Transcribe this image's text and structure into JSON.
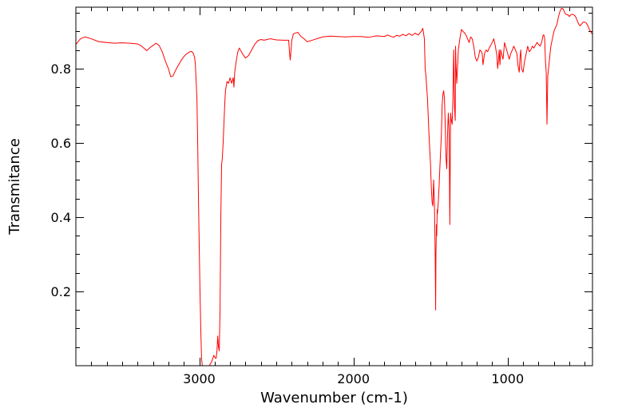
{
  "chart_data": {
    "type": "line",
    "title": "",
    "xlabel": "Wavenumber (cm-1)",
    "ylabel": "Transmitance",
    "xlim": [
      3800,
      450
    ],
    "ylim": [
      0.0,
      0.965
    ],
    "x_reversed": true,
    "grid": false,
    "legend": "none",
    "line_color": "#ff0000",
    "x_ticks": [
      {
        "value": 3000,
        "label": "3000"
      },
      {
        "value": 2000,
        "label": "2000"
      },
      {
        "value": 1000,
        "label": "1000"
      }
    ],
    "y_ticks": [
      {
        "value": 0.2,
        "label": "0.2"
      },
      {
        "value": 0.4,
        "label": "0.4"
      },
      {
        "value": 0.6,
        "label": "0.6"
      },
      {
        "value": 0.8,
        "label": "0.8"
      }
    ],
    "series": [
      {
        "x": [
          3800,
          3770,
          3740,
          3700,
          3650,
          3600,
          3550,
          3500,
          3450,
          3400,
          3380,
          3360,
          3340,
          3320,
          3300,
          3280,
          3260,
          3240,
          3220,
          3200,
          3185,
          3170,
          3150,
          3120,
          3100,
          3080,
          3060,
          3050,
          3040,
          3030,
          3025,
          3015,
          3010,
          3005,
          3000,
          2995,
          2990,
          2985,
          2980,
          2970,
          2960,
          2950,
          2935,
          2920,
          2905,
          2895,
          2890,
          2885,
          2880,
          2875,
          2870,
          2865,
          2860,
          2855,
          2850,
          2845,
          2840,
          2835,
          2830,
          2820,
          2810,
          2800,
          2790,
          2780,
          2775,
          2770,
          2760,
          2750,
          2740,
          2720,
          2700,
          2680,
          2660,
          2640,
          2620,
          2600,
          2580,
          2560,
          2540,
          2500,
          2450,
          2420,
          2415,
          2410,
          2400,
          2390,
          2380,
          2360,
          2340,
          2320,
          2300,
          2260,
          2200,
          2150,
          2100,
          2050,
          2000,
          1950,
          1900,
          1850,
          1800,
          1780,
          1760,
          1740,
          1720,
          1700,
          1680,
          1660,
          1640,
          1620,
          1600,
          1580,
          1560,
          1550,
          1540,
          1535,
          1530,
          1520,
          1510,
          1500,
          1495,
          1490,
          1485,
          1480,
          1475,
          1470,
          1467,
          1465,
          1462,
          1460,
          1457,
          1455,
          1450,
          1445,
          1440,
          1430,
          1425,
          1420,
          1415,
          1410,
          1405,
          1400,
          1395,
          1390,
          1385,
          1380,
          1378,
          1375,
          1372,
          1370,
          1365,
          1360,
          1355,
          1350,
          1348,
          1345,
          1340,
          1338,
          1335,
          1330,
          1320,
          1310,
          1300,
          1290,
          1280,
          1270,
          1260,
          1250,
          1240,
          1230,
          1220,
          1210,
          1200,
          1190,
          1180,
          1170,
          1165,
          1160,
          1150,
          1140,
          1130,
          1120,
          1110,
          1100,
          1090,
          1080,
          1070,
          1065,
          1060,
          1055,
          1050,
          1045,
          1040,
          1030,
          1020,
          1010,
          1000,
          990,
          980,
          970,
          960,
          950,
          940,
          935,
          930,
          925,
          920,
          915,
          910,
          900,
          890,
          880,
          870,
          860,
          850,
          840,
          830,
          820,
          810,
          800,
          790,
          780,
          775,
          770,
          765,
          760,
          755,
          750,
          745,
          740,
          730,
          720,
          710,
          700,
          690,
          680,
          670,
          660,
          650,
          640,
          630,
          620,
          610,
          600,
          590,
          580,
          570,
          560,
          550,
          540,
          530,
          520,
          510,
          500,
          490,
          480,
          470,
          460,
          450
        ],
        "y": [
          0.865,
          0.88,
          0.885,
          0.88,
          0.872,
          0.87,
          0.868,
          0.869,
          0.868,
          0.866,
          0.862,
          0.855,
          0.848,
          0.856,
          0.862,
          0.868,
          0.862,
          0.845,
          0.82,
          0.8,
          0.778,
          0.78,
          0.798,
          0.82,
          0.832,
          0.84,
          0.845,
          0.846,
          0.842,
          0.83,
          0.81,
          0.72,
          0.6,
          0.45,
          0.32,
          0.2,
          0.1,
          0.02,
          0.0,
          0.0,
          0.0,
          0.0,
          0.0,
          0.01,
          0.028,
          0.02,
          0.02,
          0.04,
          0.08,
          0.05,
          0.04,
          0.15,
          0.4,
          0.54,
          0.56,
          0.6,
          0.65,
          0.7,
          0.74,
          0.765,
          0.76,
          0.775,
          0.76,
          0.775,
          0.75,
          0.79,
          0.82,
          0.845,
          0.855,
          0.84,
          0.828,
          0.835,
          0.85,
          0.865,
          0.875,
          0.878,
          0.876,
          0.878,
          0.88,
          0.877,
          0.876,
          0.876,
          0.845,
          0.823,
          0.875,
          0.893,
          0.895,
          0.897,
          0.886,
          0.88,
          0.872,
          0.877,
          0.885,
          0.887,
          0.886,
          0.885,
          0.886,
          0.886,
          0.884,
          0.888,
          0.886,
          0.89,
          0.887,
          0.884,
          0.889,
          0.887,
          0.892,
          0.888,
          0.894,
          0.889,
          0.895,
          0.89,
          0.9,
          0.908,
          0.88,
          0.8,
          0.78,
          0.72,
          0.62,
          0.54,
          0.48,
          0.44,
          0.43,
          0.5,
          0.44,
          0.3,
          0.15,
          0.3,
          0.38,
          0.35,
          0.42,
          0.41,
          0.44,
          0.48,
          0.53,
          0.62,
          0.7,
          0.73,
          0.74,
          0.72,
          0.65,
          0.56,
          0.53,
          0.62,
          0.68,
          0.64,
          0.55,
          0.38,
          0.56,
          0.68,
          0.66,
          0.65,
          0.72,
          0.85,
          0.8,
          0.7,
          0.66,
          0.86,
          0.81,
          0.76,
          0.85,
          0.88,
          0.905,
          0.9,
          0.896,
          0.89,
          0.88,
          0.87,
          0.885,
          0.88,
          0.86,
          0.83,
          0.82,
          0.83,
          0.85,
          0.845,
          0.84,
          0.81,
          0.84,
          0.85,
          0.845,
          0.855,
          0.862,
          0.87,
          0.88,
          0.86,
          0.835,
          0.8,
          0.82,
          0.85,
          0.81,
          0.85,
          0.84,
          0.825,
          0.87,
          0.855,
          0.84,
          0.825,
          0.84,
          0.85,
          0.86,
          0.85,
          0.84,
          0.815,
          0.8,
          0.79,
          0.83,
          0.85,
          0.8,
          0.79,
          0.82,
          0.84,
          0.86,
          0.845,
          0.85,
          0.86,
          0.855,
          0.862,
          0.87,
          0.865,
          0.86,
          0.87,
          0.88,
          0.89,
          0.89,
          0.88,
          0.82,
          0.79,
          0.65,
          0.78,
          0.82,
          0.86,
          0.88,
          0.9,
          0.91,
          0.92,
          0.94,
          0.955,
          0.962,
          0.96,
          0.95,
          0.945,
          0.945,
          0.94,
          0.945,
          0.946,
          0.944,
          0.94,
          0.93,
          0.92,
          0.915,
          0.92,
          0.925,
          0.925,
          0.922,
          0.915,
          0.905,
          0.898,
          0.892
        ]
      }
    ]
  }
}
